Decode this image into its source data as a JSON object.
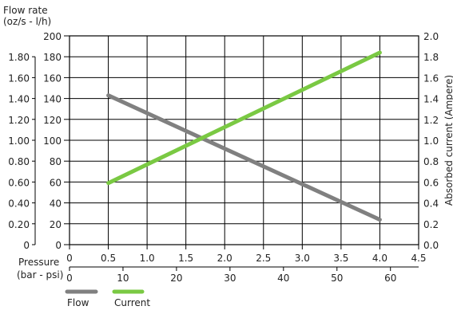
{
  "chart_data": {
    "type": "line",
    "axes": {
      "left_outer": {
        "label_lines": [
          "Flow rate",
          "(oz/s - l/h)"
        ],
        "ticks": [
          "1.80",
          "1.60",
          "1.40",
          "1.20",
          "1.00",
          "0.80",
          "0.60",
          "0.40",
          "0.20",
          "0"
        ],
        "range": [
          0,
          1.8
        ]
      },
      "left_inner": {
        "ticks": [
          "200",
          "180",
          "160",
          "140",
          "120",
          "100",
          "80",
          "60",
          "40",
          "20",
          "0"
        ],
        "range": [
          0,
          200
        ]
      },
      "right": {
        "label": "Absorbed current  (Ampere)",
        "ticks": [
          "2.0",
          "1.8",
          "1.6",
          "1.4",
          "1.2",
          "1.0",
          "0.8",
          "0.6",
          "0.4",
          "0.2",
          "0.0"
        ],
        "range": [
          0,
          2.0
        ]
      },
      "x_bar": {
        "ticks": [
          "0",
          "0.5",
          "1.0",
          "1.5",
          "2.0",
          "2.5",
          "3.0",
          "3.5",
          "4.0",
          "4.5"
        ],
        "range": [
          0,
          4.5
        ]
      },
      "x_psi": {
        "ticks": [
          "0",
          "10",
          "20",
          "30",
          "40",
          "50",
          "60"
        ],
        "range": [
          0,
          65.27
        ]
      },
      "x_label_lines": [
        "Pressure",
        "(bar - psi)"
      ]
    },
    "grid": true,
    "series": [
      {
        "name": "Flow",
        "axis": "left_inner",
        "color": "#808080",
        "points": [
          [
            0.5,
            143
          ],
          [
            4.0,
            24
          ]
        ]
      },
      {
        "name": "Current",
        "axis": "right",
        "color": "#7ac943",
        "points": [
          [
            0.5,
            0.59
          ],
          [
            4.0,
            1.84
          ]
        ]
      }
    ],
    "legend": {
      "placement": "bottom-left",
      "entries": [
        {
          "label": "Flow",
          "color": "#808080"
        },
        {
          "label": "Current",
          "color": "#7ac943"
        }
      ]
    }
  }
}
